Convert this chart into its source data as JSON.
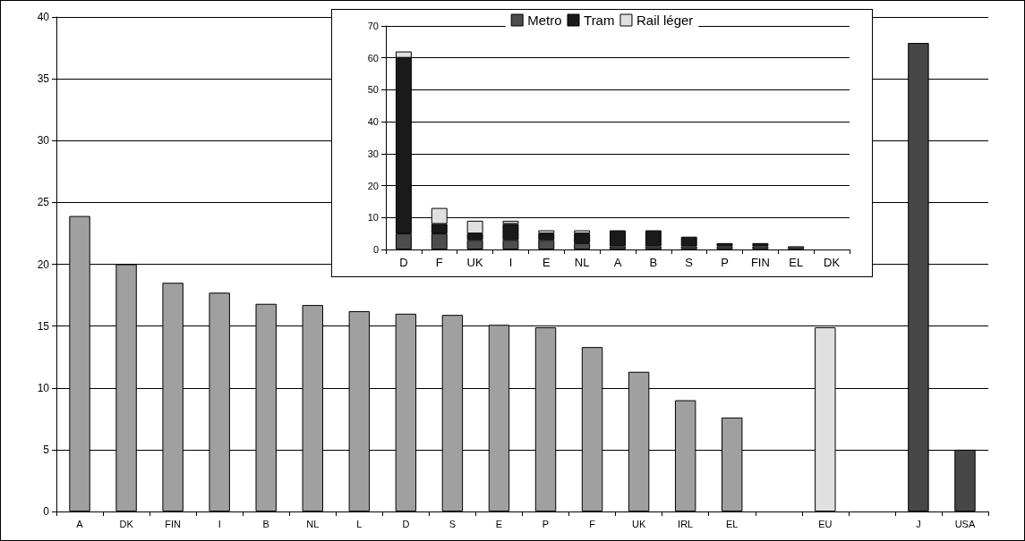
{
  "chart_data": [
    {
      "type": "bar",
      "categories": [
        "A",
        "DK",
        "FIN",
        "I",
        "B",
        "NL",
        "L",
        "D",
        "S",
        "E",
        "P",
        "F",
        "UK",
        "IRL",
        "EL",
        null,
        "EU",
        null,
        "J",
        "USA"
      ],
      "values": [
        23.9,
        20.0,
        18.5,
        17.7,
        16.8,
        16.7,
        16.2,
        16.0,
        15.9,
        15.1,
        14.9,
        13.3,
        11.3,
        9.0,
        7.6,
        null,
        14.9,
        null,
        37.9,
        5.0
      ],
      "colors": [
        "#a0a0a0",
        "#a0a0a0",
        "#a0a0a0",
        "#a0a0a0",
        "#a0a0a0",
        "#a0a0a0",
        "#a0a0a0",
        "#a0a0a0",
        "#a0a0a0",
        "#a0a0a0",
        "#a0a0a0",
        "#a0a0a0",
        "#a0a0a0",
        "#a0a0a0",
        "#a0a0a0",
        "#a0a0a0",
        "#e0e0e0",
        "#a0a0a0",
        "#474747",
        "#474747"
      ],
      "ylim": [
        0,
        40
      ],
      "yticks": [
        0,
        5,
        10,
        15,
        20,
        25,
        30,
        35,
        40
      ],
      "grid": "y",
      "legend": false
    },
    {
      "type": "bar",
      "stacked": true,
      "categories": [
        "D",
        "F",
        "UK",
        "I",
        "E",
        "NL",
        "A",
        "B",
        "S",
        "P",
        "FIN",
        "EL",
        "DK"
      ],
      "series": [
        {
          "name": "Metro",
          "color": "#4d4d4d",
          "values": [
            5,
            5,
            3,
            3,
            3,
            2,
            1,
            1,
            1,
            1,
            1,
            1,
            0
          ]
        },
        {
          "name": "Tram",
          "color": "#1a1a1a",
          "values": [
            55,
            3,
            2,
            5,
            2,
            3,
            5,
            5,
            3,
            1,
            1,
            0,
            0
          ]
        },
        {
          "name": "Rail léger",
          "color": "#e0e0e0",
          "values": [
            2,
            5,
            4,
            1,
            1,
            1,
            0,
            0,
            0,
            0,
            0,
            0,
            0
          ]
        }
      ],
      "ylim": [
        0,
        70
      ],
      "yticks": [
        0,
        10,
        20,
        30,
        40,
        50,
        60,
        70
      ],
      "grid": "y",
      "legend": "top"
    }
  ]
}
